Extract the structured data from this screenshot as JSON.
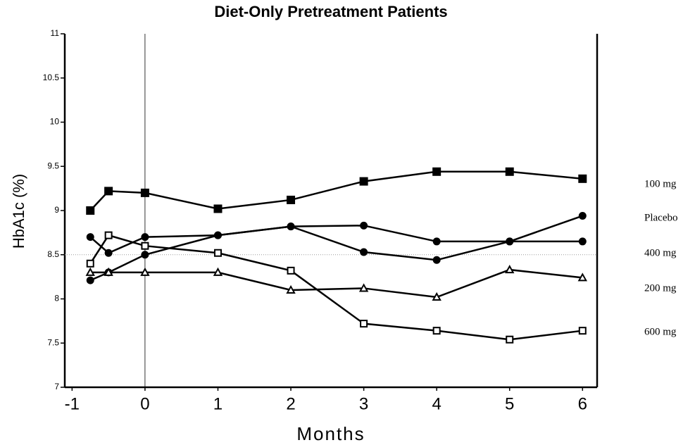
{
  "chart_data": {
    "type": "line",
    "title": "Diet-Only Pretreatment Patients",
    "xlabel": "Months",
    "ylabel": "HbA1c (%)",
    "x": [
      -0.75,
      -0.5,
      0,
      1,
      2,
      3,
      4,
      5,
      6
    ],
    "series": [
      {
        "name": "100 mg",
        "color": "#000000",
        "marker": "filled-square",
        "values": [
          9.0,
          9.22,
          9.2,
          9.02,
          9.12,
          9.33,
          9.44,
          9.44,
          9.36
        ]
      },
      {
        "name": "Placebo",
        "color": "#000000",
        "marker": "filled-circle",
        "values": [
          8.21,
          8.3,
          8.5,
          8.72,
          8.82,
          8.53,
          8.44,
          8.65,
          8.94
        ]
      },
      {
        "name": "400 mg",
        "color": "#000000",
        "marker": "filled-circle",
        "values": [
          8.7,
          8.52,
          8.7,
          8.72,
          8.82,
          8.83,
          8.65,
          8.65,
          8.65
        ]
      },
      {
        "name": "200 mg",
        "color": "#000000",
        "marker": "open-triangle",
        "values": [
          8.3,
          8.3,
          8.3,
          8.3,
          8.1,
          8.12,
          8.02,
          8.33,
          8.24
        ]
      },
      {
        "name": "600 mg",
        "color": "#000000",
        "marker": "open-square",
        "values": [
          8.4,
          8.72,
          8.6,
          8.52,
          8.32,
          7.72,
          7.64,
          7.54,
          7.64
        ]
      }
    ],
    "xlim": [
      -1.1,
      6.2
    ],
    "ylim": [
      7,
      11
    ],
    "xticks": [
      -1,
      0,
      1,
      2,
      3,
      4,
      5,
      6
    ],
    "yticks": [
      7,
      7.5,
      8,
      8.5,
      9,
      9.5,
      10,
      10.5,
      11
    ]
  }
}
